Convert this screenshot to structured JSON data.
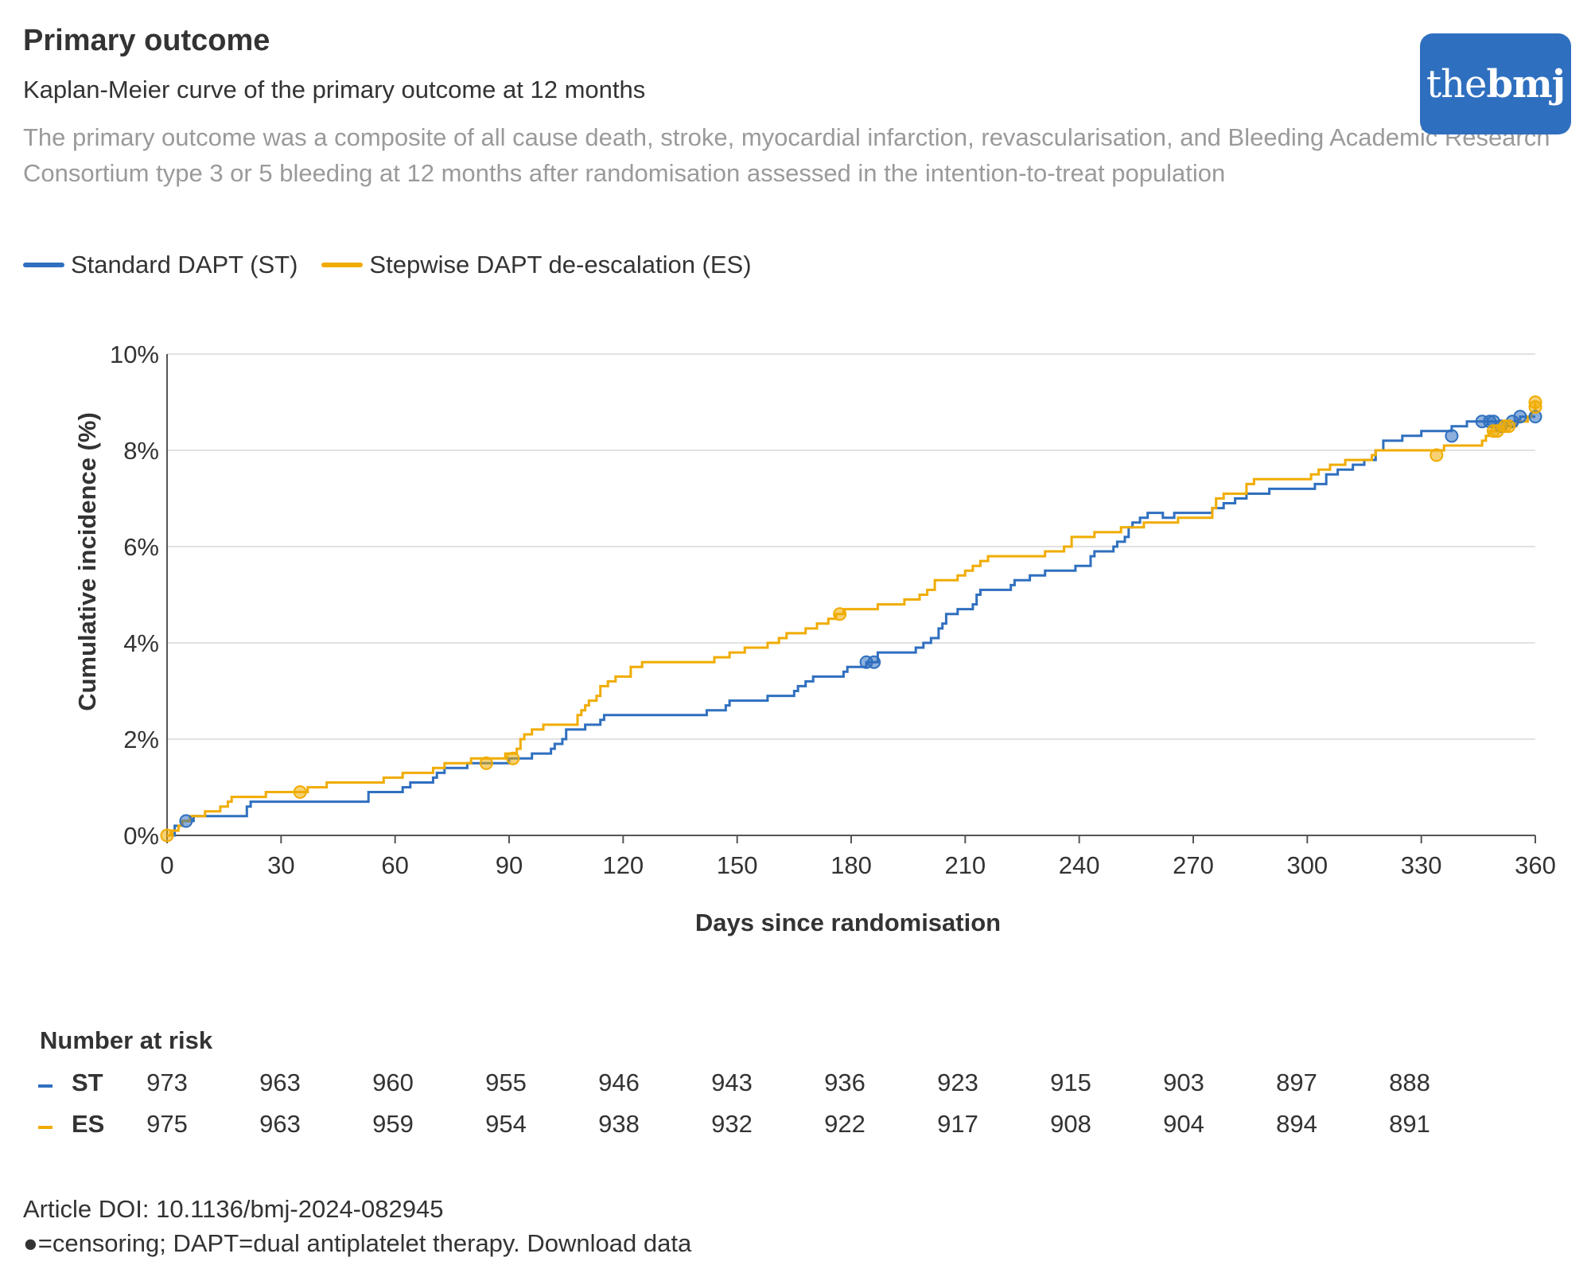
{
  "header": {
    "title": "Primary outcome",
    "subtitle": "Kaplan-Meier curve of the primary outcome at 12 months",
    "description": "The primary outcome was a composite of all cause death, stroke, myocardial infarction, revascularisation, and Bleeding Academic Research Consortium type 3 or 5 bleeding at 12 months after randomisation assessed in the intention-to-treat population"
  },
  "logo": {
    "light": "the",
    "bold": "bmj"
  },
  "colors": {
    "st": "#2f6fbf",
    "es": "#f0ac00",
    "grid": "#d9d9d9",
    "axis": "#555555",
    "logo_bg": "#2f6fbf"
  },
  "chart_data": {
    "type": "line",
    "step": true,
    "xlabel": "Days since randomisation",
    "ylabel": "Cumulative incidence (%)",
    "xlim": [
      0,
      360
    ],
    "ylim": [
      0,
      10
    ],
    "x_ticks": [
      0,
      30,
      60,
      90,
      120,
      150,
      180,
      210,
      240,
      270,
      300,
      330,
      360
    ],
    "y_ticks": [
      0,
      2,
      4,
      6,
      8,
      10
    ],
    "y_tick_labels": [
      "0%",
      "2%",
      "4%",
      "6%",
      "8%",
      "10%"
    ],
    "legend_position": "top-left",
    "series": [
      {
        "name": "Standard DAPT (ST)",
        "key": "st",
        "points": [
          [
            0,
            0
          ],
          [
            2,
            0.2
          ],
          [
            4,
            0.3
          ],
          [
            6,
            0.3
          ],
          [
            7,
            0.4
          ],
          [
            20,
            0.4
          ],
          [
            21,
            0.6
          ],
          [
            22,
            0.7
          ],
          [
            52,
            0.7
          ],
          [
            53,
            0.9
          ],
          [
            60,
            0.9
          ],
          [
            62,
            1.0
          ],
          [
            64,
            1.1
          ],
          [
            69,
            1.1
          ],
          [
            70,
            1.2
          ],
          [
            71,
            1.3
          ],
          [
            73,
            1.4
          ],
          [
            77,
            1.4
          ],
          [
            79,
            1.5
          ],
          [
            81,
            1.5
          ],
          [
            88,
            1.5
          ],
          [
            90,
            1.6
          ],
          [
            95,
            1.6
          ],
          [
            96,
            1.7
          ],
          [
            100,
            1.7
          ],
          [
            101,
            1.8
          ],
          [
            102,
            1.9
          ],
          [
            103,
            1.9
          ],
          [
            104,
            2.0
          ],
          [
            105,
            2.2
          ],
          [
            107,
            2.2
          ],
          [
            110,
            2.3
          ],
          [
            114,
            2.4
          ],
          [
            115,
            2.5
          ],
          [
            141,
            2.5
          ],
          [
            142,
            2.6
          ],
          [
            147,
            2.7
          ],
          [
            148,
            2.8
          ],
          [
            157,
            2.8
          ],
          [
            158,
            2.9
          ],
          [
            164,
            2.9
          ],
          [
            165,
            3.0
          ],
          [
            166,
            3.1
          ],
          [
            168,
            3.2
          ],
          [
            170,
            3.3
          ],
          [
            177,
            3.3
          ],
          [
            178,
            3.4
          ],
          [
            179,
            3.5
          ],
          [
            184,
            3.6
          ],
          [
            186,
            3.6
          ],
          [
            187,
            3.8
          ],
          [
            196,
            3.8
          ],
          [
            197,
            3.9
          ],
          [
            199,
            4.0
          ],
          [
            201,
            4.1
          ],
          [
            203,
            4.3
          ],
          [
            204,
            4.4
          ],
          [
            205,
            4.6
          ],
          [
            208,
            4.7
          ],
          [
            212,
            4.8
          ],
          [
            213,
            5.0
          ],
          [
            214,
            5.1
          ],
          [
            221,
            5.1
          ],
          [
            222,
            5.2
          ],
          [
            223,
            5.3
          ],
          [
            227,
            5.4
          ],
          [
            231,
            5.5
          ],
          [
            238,
            5.5
          ],
          [
            239,
            5.6
          ],
          [
            240,
            5.6
          ],
          [
            243,
            5.8
          ],
          [
            244,
            5.9
          ],
          [
            248,
            5.9
          ],
          [
            249,
            6.0
          ],
          [
            250,
            6.1
          ],
          [
            252,
            6.2
          ],
          [
            253,
            6.4
          ],
          [
            254,
            6.5
          ],
          [
            256,
            6.6
          ],
          [
            258,
            6.7
          ],
          [
            260,
            6.7
          ],
          [
            262,
            6.6
          ],
          [
            265,
            6.7
          ],
          [
            275,
            6.8
          ],
          [
            278,
            6.9
          ],
          [
            281,
            7.0
          ],
          [
            284,
            7.1
          ],
          [
            290,
            7.2
          ],
          [
            302,
            7.3
          ],
          [
            305,
            7.5
          ],
          [
            308,
            7.6
          ],
          [
            312,
            7.7
          ],
          [
            315,
            7.8
          ],
          [
            318,
            8.0
          ],
          [
            320,
            8.2
          ],
          [
            325,
            8.3
          ],
          [
            330,
            8.4
          ],
          [
            336,
            8.4
          ],
          [
            338,
            8.5
          ],
          [
            342,
            8.6
          ],
          [
            346,
            8.6
          ],
          [
            349,
            8.6
          ],
          [
            351,
            8.6
          ],
          [
            354,
            8.6
          ],
          [
            356,
            8.7
          ],
          [
            360,
            8.7
          ]
        ],
        "censor_marks": [
          [
            5,
            0.3
          ],
          [
            184,
            3.6
          ],
          [
            186,
            3.6
          ],
          [
            338,
            8.3
          ],
          [
            346,
            8.6
          ],
          [
            348,
            8.6
          ],
          [
            349,
            8.6
          ],
          [
            351,
            8.5
          ],
          [
            354,
            8.6
          ],
          [
            356,
            8.7
          ],
          [
            360,
            8.7
          ]
        ]
      },
      {
        "name": "Stepwise DAPT de-escalation (ES)",
        "key": "es",
        "points": [
          [
            0,
            0
          ],
          [
            1,
            0.1
          ],
          [
            3,
            0.2
          ],
          [
            4,
            0.3
          ],
          [
            6,
            0.4
          ],
          [
            10,
            0.5
          ],
          [
            14,
            0.6
          ],
          [
            16,
            0.7
          ],
          [
            17,
            0.8
          ],
          [
            25,
            0.8
          ],
          [
            26,
            0.9
          ],
          [
            36,
            0.9
          ],
          [
            37,
            1.0
          ],
          [
            41,
            1.0
          ],
          [
            42,
            1.1
          ],
          [
            56,
            1.1
          ],
          [
            57,
            1.2
          ],
          [
            61,
            1.2
          ],
          [
            62,
            1.3
          ],
          [
            68,
            1.3
          ],
          [
            70,
            1.4
          ],
          [
            73,
            1.5
          ],
          [
            79,
            1.5
          ],
          [
            80,
            1.6
          ],
          [
            88,
            1.6
          ],
          [
            89,
            1.7
          ],
          [
            91,
            1.7
          ],
          [
            92,
            1.8
          ],
          [
            93,
            2.0
          ],
          [
            94,
            2.1
          ],
          [
            96,
            2.2
          ],
          [
            98,
            2.2
          ],
          [
            99,
            2.3
          ],
          [
            106,
            2.3
          ],
          [
            108,
            2.5
          ],
          [
            109,
            2.6
          ],
          [
            110,
            2.7
          ],
          [
            111,
            2.8
          ],
          [
            113,
            2.9
          ],
          [
            114,
            3.1
          ],
          [
            116,
            3.2
          ],
          [
            118,
            3.3
          ],
          [
            121,
            3.3
          ],
          [
            122,
            3.5
          ],
          [
            125,
            3.6
          ],
          [
            142,
            3.6
          ],
          [
            144,
            3.7
          ],
          [
            148,
            3.8
          ],
          [
            152,
            3.9
          ],
          [
            158,
            4.0
          ],
          [
            161,
            4.1
          ],
          [
            163,
            4.2
          ],
          [
            168,
            4.3
          ],
          [
            171,
            4.4
          ],
          [
            174,
            4.5
          ],
          [
            176,
            4.6
          ],
          [
            178,
            4.7
          ],
          [
            186,
            4.7
          ],
          [
            187,
            4.8
          ],
          [
            194,
            4.9
          ],
          [
            198,
            5.0
          ],
          [
            200,
            5.1
          ],
          [
            202,
            5.3
          ],
          [
            208,
            5.4
          ],
          [
            210,
            5.5
          ],
          [
            212,
            5.6
          ],
          [
            214,
            5.7
          ],
          [
            216,
            5.8
          ],
          [
            229,
            5.8
          ],
          [
            231,
            5.9
          ],
          [
            236,
            6.0
          ],
          [
            238,
            6.2
          ],
          [
            242,
            6.2
          ],
          [
            244,
            6.3
          ],
          [
            250,
            6.3
          ],
          [
            251,
            6.4
          ],
          [
            257,
            6.5
          ],
          [
            263,
            6.5
          ],
          [
            266,
            6.6
          ],
          [
            273,
            6.6
          ],
          [
            275,
            6.8
          ],
          [
            276,
            7.0
          ],
          [
            278,
            7.1
          ],
          [
            283,
            7.1
          ],
          [
            284,
            7.3
          ],
          [
            286,
            7.4
          ],
          [
            300,
            7.4
          ],
          [
            301,
            7.5
          ],
          [
            303,
            7.6
          ],
          [
            306,
            7.7
          ],
          [
            310,
            7.8
          ],
          [
            316,
            7.8
          ],
          [
            317,
            7.9
          ],
          [
            318,
            8.0
          ],
          [
            334,
            8.0
          ],
          [
            336,
            8.1
          ],
          [
            346,
            8.2
          ],
          [
            347,
            8.3
          ],
          [
            348,
            8.4
          ],
          [
            350,
            8.4
          ],
          [
            352,
            8.5
          ],
          [
            355,
            8.6
          ],
          [
            358,
            8.7
          ],
          [
            359,
            8.8
          ],
          [
            360,
            9.0
          ]
        ],
        "censor_marks": [
          [
            0,
            0
          ],
          [
            35,
            0.9
          ],
          [
            84,
            1.5
          ],
          [
            91,
            1.6
          ],
          [
            177,
            4.6
          ],
          [
            334,
            7.9
          ],
          [
            349,
            8.4
          ],
          [
            350,
            8.4
          ],
          [
            352,
            8.5
          ],
          [
            353,
            8.5
          ],
          [
            360,
            9.0
          ],
          [
            360,
            8.9
          ]
        ]
      }
    ]
  },
  "number_at_risk": {
    "title": "Number at risk",
    "rows": [
      {
        "label": "ST",
        "key": "st",
        "values": [
          "973",
          "963",
          "960",
          "955",
          "946",
          "943",
          "936",
          "923",
          "915",
          "903",
          "897",
          "888"
        ]
      },
      {
        "label": "ES",
        "key": "es",
        "values": [
          "975",
          "963",
          "959",
          "954",
          "938",
          "932",
          "922",
          "917",
          "908",
          "904",
          "894",
          "891"
        ]
      }
    ]
  },
  "footer": {
    "doi": "Article DOI: 10.1136/bmj-2024-082945",
    "note": "●=censoring; DAPT=dual antiplatelet therapy.",
    "download_link": "Download data"
  }
}
